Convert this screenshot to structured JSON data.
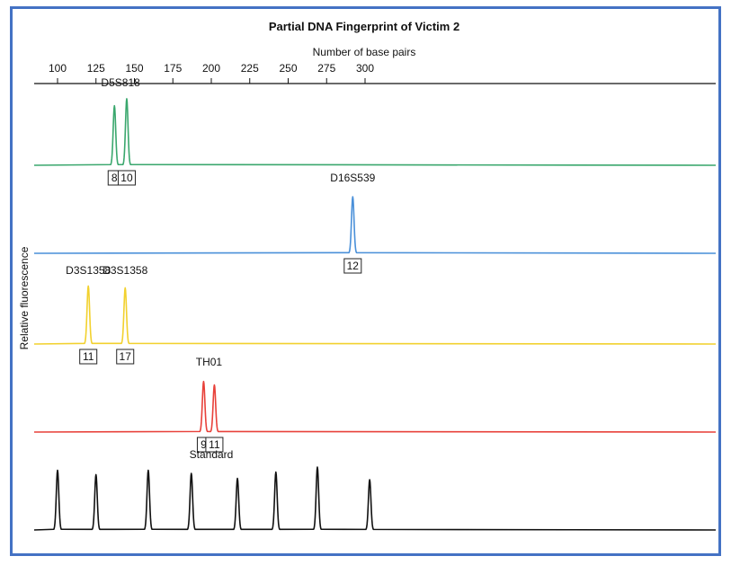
{
  "chart_data": {
    "type": "line",
    "title": "Partial DNA Fingerprint of Victim 2",
    "xlabel": "Number of base pairs",
    "ylabel": "Relative fluorescence",
    "xlim": [
      93,
      314
    ],
    "x_ticks": [
      100,
      125,
      150,
      175,
      200,
      225,
      250,
      275,
      300
    ],
    "traces": [
      {
        "color": "#3aa76d",
        "peaks": [
          {
            "x": 137,
            "height": 0.85,
            "allele": "8"
          },
          {
            "x": 145,
            "height": 0.95,
            "allele": "10"
          }
        ],
        "labels": [
          {
            "text": "D5S818",
            "x": 141
          }
        ]
      },
      {
        "color": "#4a90d9",
        "peaks": [
          {
            "x": 292,
            "height": 0.9,
            "allele": "12"
          }
        ],
        "labels": [
          {
            "text": "D16S539",
            "x": 292
          }
        ]
      },
      {
        "color": "#f2d12e",
        "peaks": [
          {
            "x": 120,
            "height": 0.95,
            "allele": "11"
          },
          {
            "x": 144,
            "height": 0.92,
            "allele": "17"
          }
        ],
        "labels": [
          {
            "text": "D3S1358",
            "x": 120
          },
          {
            "text": "D3S1358",
            "x": 144
          }
        ]
      },
      {
        "color": "#e8413a",
        "peaks": [
          {
            "x": 195,
            "height": 0.88,
            "allele": "9"
          },
          {
            "x": 202,
            "height": 0.82,
            "allele": "11"
          }
        ],
        "labels": [
          {
            "text": "TH01",
            "x": 198.5
          }
        ]
      },
      {
        "color": "#111111",
        "peaks": [
          {
            "x": 100,
            "height": 0.95
          },
          {
            "x": 125,
            "height": 0.88
          },
          {
            "x": 159,
            "height": 0.95
          },
          {
            "x": 187,
            "height": 0.9
          },
          {
            "x": 217,
            "height": 0.82
          },
          {
            "x": 242,
            "height": 0.92
          },
          {
            "x": 269,
            "height": 1.0
          },
          {
            "x": 303,
            "height": 0.8
          }
        ],
        "labels": [
          {
            "text": "Standard",
            "x": 200
          }
        ]
      }
    ]
  }
}
